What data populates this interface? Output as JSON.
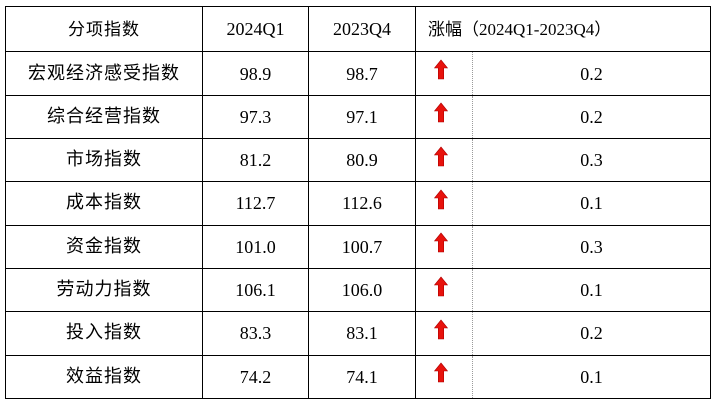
{
  "header": {
    "name": "分项指数",
    "col_q1": "2024Q1",
    "col_q4": "2023Q4",
    "change_label": "涨幅",
    "change_range": "（2024Q1-2023Q4）"
  },
  "colors": {
    "arrow": "#e8120c",
    "border": "#000000",
    "divider": "#9a9a9a"
  },
  "rows": [
    {
      "name": "宏观经济感受指数",
      "q1": "98.9",
      "q4": "98.7",
      "trend_icon": "up-arrow",
      "change": "0.2"
    },
    {
      "name": "综合经营指数",
      "q1": "97.3",
      "q4": "97.1",
      "trend_icon": "up-arrow",
      "change": "0.2"
    },
    {
      "name": "市场指数",
      "q1": "81.2",
      "q4": "80.9",
      "trend_icon": "up-arrow",
      "change": "0.3"
    },
    {
      "name": "成本指数",
      "q1": "112.7",
      "q4": "112.6",
      "trend_icon": "up-arrow",
      "change": "0.1"
    },
    {
      "name": "资金指数",
      "q1": "101.0",
      "q4": "100.7",
      "trend_icon": "up-arrow",
      "change": "0.3"
    },
    {
      "name": "劳动力指数",
      "q1": "106.1",
      "q4": "106.0",
      "trend_icon": "up-arrow",
      "change": "0.1"
    },
    {
      "name": "投入指数",
      "q1": "83.3",
      "q4": "83.1",
      "trend_icon": "up-arrow",
      "change": "0.2"
    },
    {
      "name": "效益指数",
      "q1": "74.2",
      "q4": "74.1",
      "trend_icon": "up-arrow",
      "change": "0.1"
    }
  ]
}
